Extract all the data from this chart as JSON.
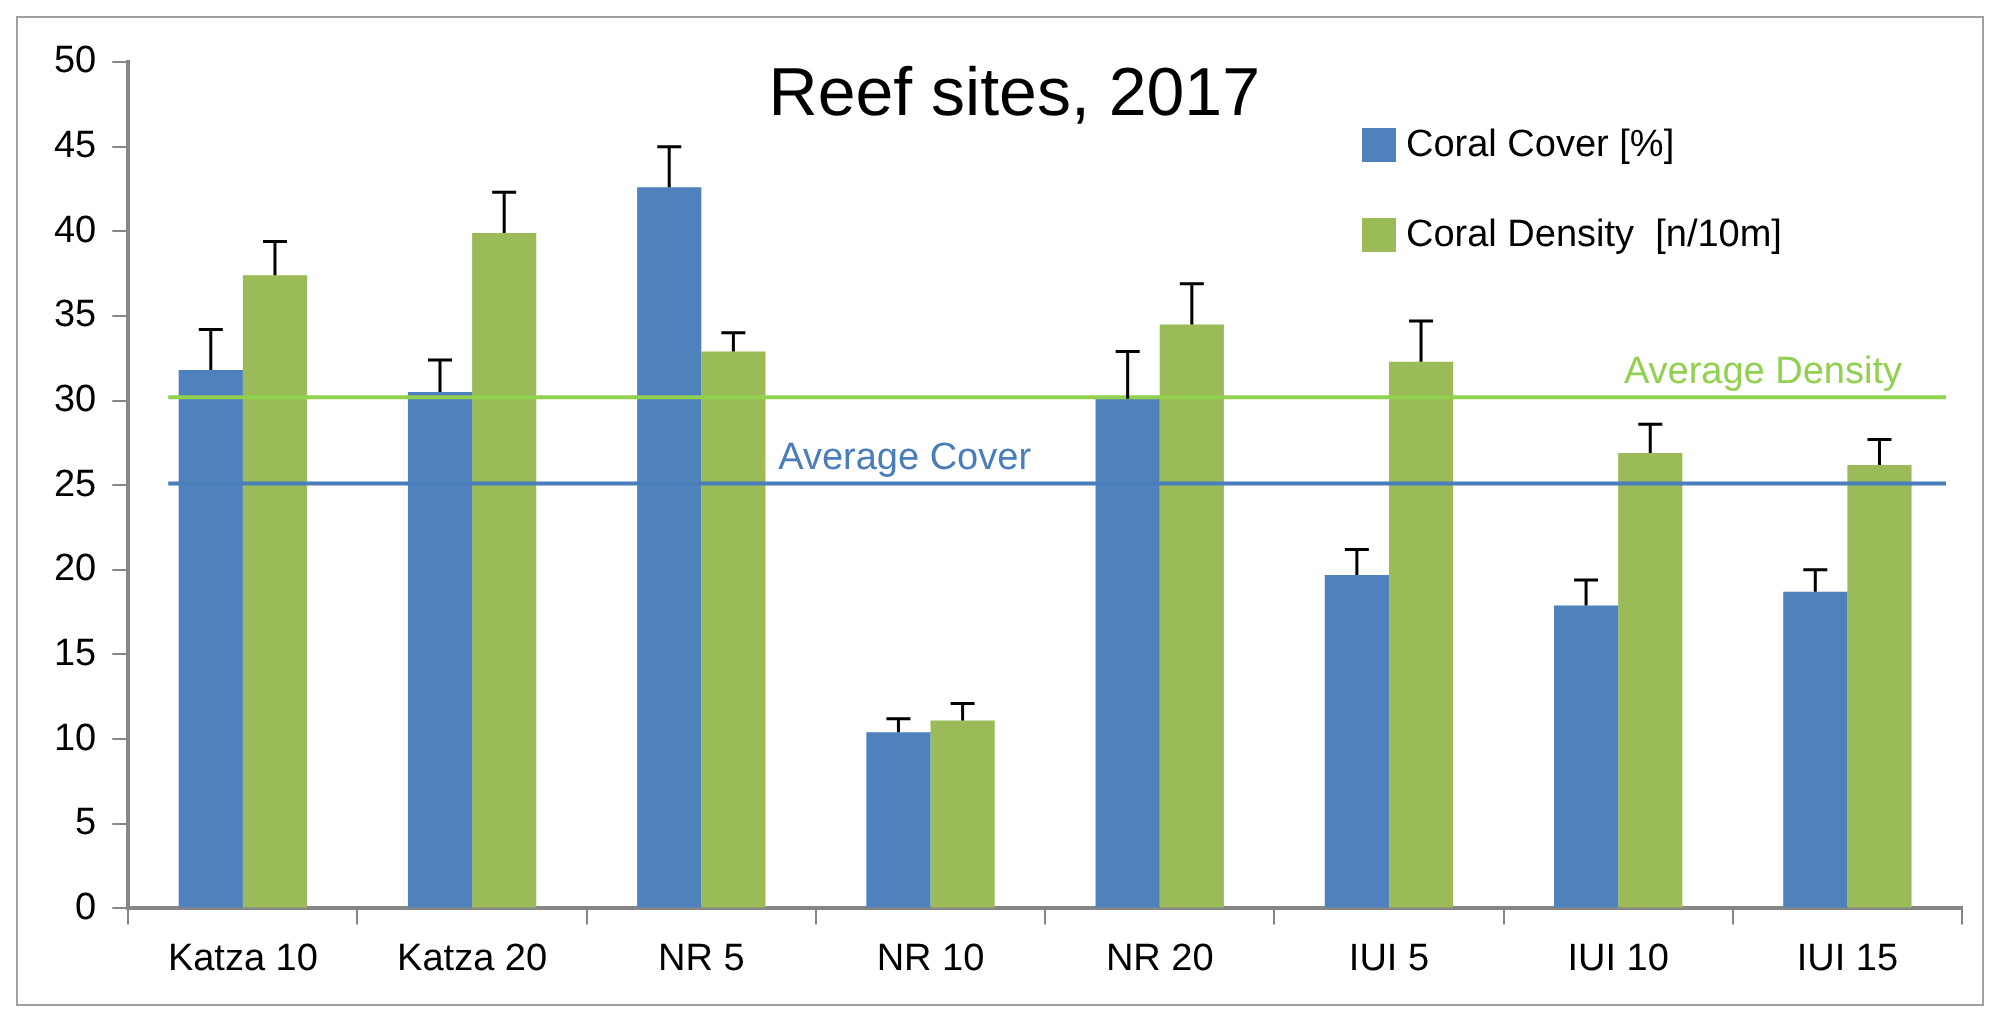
{
  "chart_data": {
    "type": "bar",
    "title": "Reef sites, 2017",
    "categories": [
      "Katza 10",
      "Katza 20",
      "NR 5",
      "NR 10",
      "NR 20",
      "IUI 5",
      "IUI 10",
      "IUI 15"
    ],
    "series": [
      {
        "name": "Coral Cover [%]",
        "color": "#4f81bd",
        "values": [
          31.8,
          30.5,
          42.6,
          10.4,
          30.1,
          19.7,
          17.9,
          18.7
        ],
        "errors": [
          [
            31.8,
            34.2
          ],
          [
            30.5,
            32.4
          ],
          [
            42.6,
            45.0
          ],
          [
            10.4,
            11.2
          ],
          [
            30.1,
            32.9
          ],
          [
            19.7,
            21.2
          ],
          [
            17.9,
            19.4
          ],
          [
            18.7,
            20.0
          ]
        ]
      },
      {
        "name": "Coral Density  [n/10m]",
        "color": "#9bbb59",
        "values": [
          37.4,
          39.9,
          32.9,
          11.1,
          34.5,
          32.3,
          26.9,
          26.2
        ],
        "errors": [
          [
            37.4,
            39.4
          ],
          [
            39.9,
            42.3
          ],
          [
            32.9,
            34.0
          ],
          [
            11.1,
            12.1
          ],
          [
            34.5,
            36.9
          ],
          [
            32.3,
            34.7
          ],
          [
            26.9,
            28.6
          ],
          [
            26.2,
            27.7
          ]
        ]
      }
    ],
    "ylim": [
      0,
      50
    ],
    "yticks": [
      0,
      5,
      10,
      15,
      20,
      25,
      30,
      35,
      40,
      45,
      50
    ],
    "grid": false,
    "legend": "top right",
    "ref_lines": [
      {
        "axis": "y",
        "value": 25.1,
        "label": "Average Cover",
        "color": "#4a7ebb"
      },
      {
        "axis": "y",
        "value": 30.2,
        "label": "Average Density",
        "color": "#92d050"
      }
    ]
  }
}
